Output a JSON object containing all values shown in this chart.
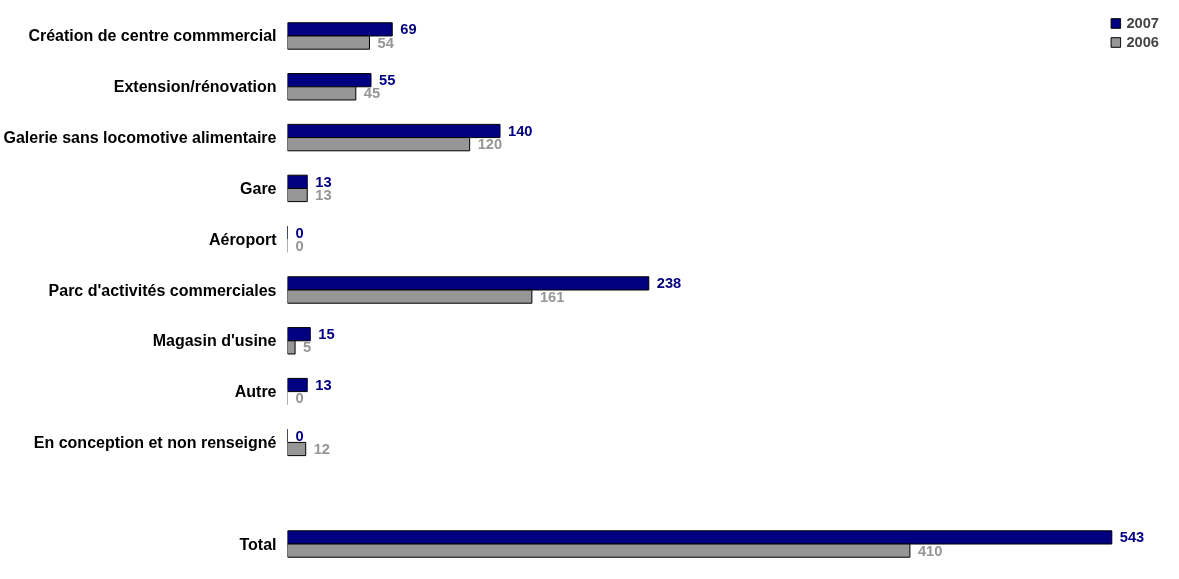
{
  "chart_data": {
    "type": "bar",
    "orientation": "horizontal",
    "data_labels": true,
    "legend": "top right",
    "grid": false,
    "categories": [
      "Création de centre commmercial",
      "Extension/rénovation",
      "Galerie sans locomotive alimentaire",
      "Gare",
      "Aéroport",
      "Parc d'activités commerciales",
      "Magasin d'usine",
      "Autre",
      "En conception et non renseigné",
      null,
      "Total"
    ],
    "series": [
      {
        "name": "2007",
        "color": "#000080",
        "values": [
          69,
          55,
          140,
          13,
          0,
          238,
          15,
          13,
          0,
          null,
          543
        ]
      },
      {
        "name": "2006",
        "color": "#969696",
        "values": [
          54,
          45,
          120,
          13,
          0,
          161,
          5,
          0,
          12,
          null,
          410
        ]
      }
    ]
  }
}
